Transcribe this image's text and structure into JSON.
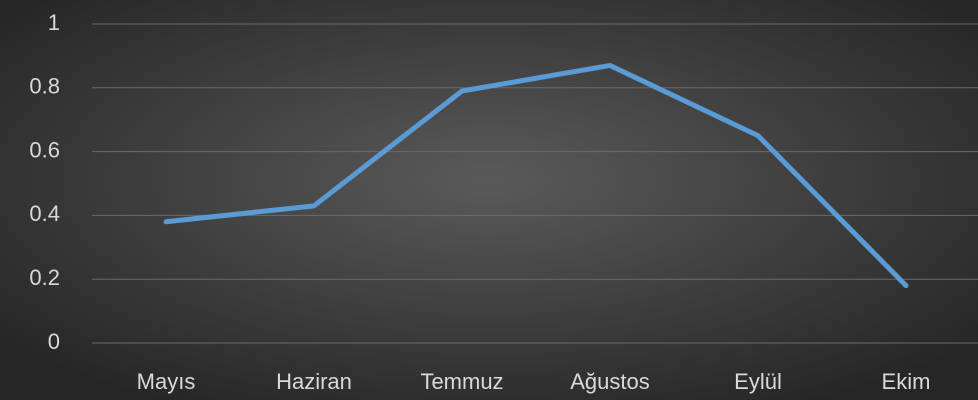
{
  "chart_data": {
    "type": "line",
    "categories": [
      "Mayıs",
      "Haziran",
      "Temmuz",
      "Ağustos",
      "Eylül",
      "Ekim"
    ],
    "series": [
      {
        "color": "#5b9bd5",
        "values": [
          0.38,
          0.43,
          0.79,
          0.87,
          0.65,
          0.18
        ]
      }
    ],
    "ylim": [
      0,
      1
    ],
    "yticks": [
      0,
      0.2,
      0.4,
      0.6,
      0.8,
      1
    ],
    "grid": true
  }
}
